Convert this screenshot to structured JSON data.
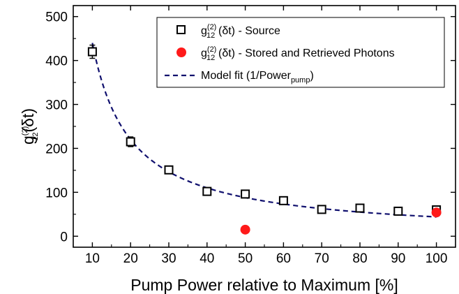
{
  "chart_data": {
    "type": "scatter",
    "xlabel": "Pump Power relative to Maximum [%]",
    "ylabel": {
      "main": "g",
      "sup": "(2)",
      "sub": "12",
      "tail": "(δt)"
    },
    "xlim": [
      5,
      105
    ],
    "ylim": [
      -25,
      525
    ],
    "xticks": [
      10,
      20,
      30,
      40,
      50,
      60,
      70,
      80,
      90,
      100
    ],
    "yticks": [
      0,
      100,
      200,
      300,
      400,
      500
    ],
    "grid": false,
    "legend_position": "top-right",
    "series": [
      {
        "name": {
          "main": "g",
          "sup": "(2)",
          "sub": "12",
          "tail": "(δt) - Source"
        },
        "marker": "open-square",
        "color": "#000000",
        "points": [
          {
            "x": 10,
            "y": 420,
            "err": 15
          },
          {
            "x": 20,
            "y": 215,
            "err": 11
          },
          {
            "x": 30,
            "y": 151,
            "err": 8
          },
          {
            "x": 40,
            "y": 102,
            "err": 5
          },
          {
            "x": 50,
            "y": 96,
            "err": 5
          },
          {
            "x": 60,
            "y": 81,
            "err": 4
          },
          {
            "x": 70,
            "y": 61,
            "err": 3
          },
          {
            "x": 80,
            "y": 64,
            "err": 3
          },
          {
            "x": 90,
            "y": 57,
            "err": 3
          },
          {
            "x": 100,
            "y": 60,
            "err": 3
          }
        ]
      },
      {
        "name": {
          "main": "g",
          "sup": "(2)",
          "sub": "12",
          "tail": "(δt) - Stored and Retrieved Photons"
        },
        "marker": "filled-circle",
        "color": "#ff1a1a",
        "points": [
          {
            "x": 50,
            "y": 15
          },
          {
            "x": 100,
            "y": 54
          }
        ]
      },
      {
        "name": {
          "main": "Model fit (1/Power",
          "sub": "pump",
          "tail": ")"
        },
        "marker": "dashed-line",
        "color": "#10106e",
        "model": "y = 4400 / x",
        "coefficient": 4400,
        "x_range": [
          10,
          100
        ]
      }
    ]
  }
}
